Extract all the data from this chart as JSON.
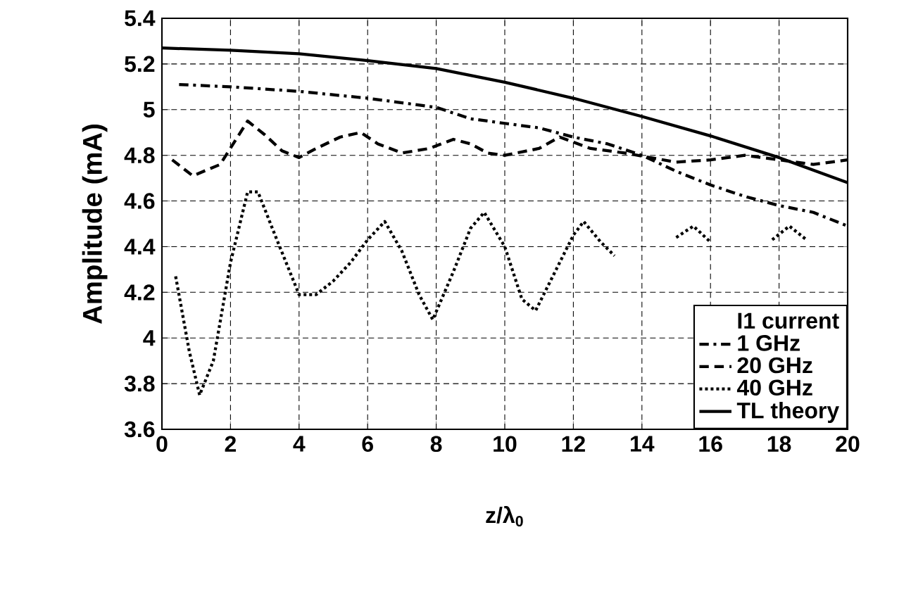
{
  "chart_data": {
    "type": "line",
    "xlabel": "z/λ$_{0}$",
    "ylabel": "Amplitude (mA)",
    "legend_title": "I1 current",
    "xlim": [
      0,
      20
    ],
    "xticks": [
      0,
      2,
      4,
      6,
      8,
      10,
      12,
      14,
      16,
      18,
      20
    ],
    "ylim": [
      3.6,
      5.4
    ],
    "yticks": [
      3.6,
      3.8,
      4,
      4.2,
      4.4,
      4.6,
      4.8,
      5,
      5.2,
      5.4
    ],
    "grid": true,
    "legend": "bottom right",
    "series": [
      {
        "name": "1 GHz",
        "color": "#000000",
        "line_style": "dashdot",
        "x": [
          0.5,
          2,
          4,
          6,
          8,
          9,
          10,
          11,
          12,
          13,
          14,
          15,
          16,
          17,
          18,
          19,
          20
        ],
        "values": [
          5.11,
          5.1,
          5.08,
          5.05,
          5.01,
          4.96,
          4.94,
          4.92,
          4.88,
          4.85,
          4.8,
          4.73,
          4.67,
          4.62,
          4.58,
          4.55,
          4.49
        ]
      },
      {
        "name": "20 GHz",
        "color": "#000000",
        "line_style": "dashed",
        "x": [
          0.3,
          0.9,
          1.7,
          2.5,
          3,
          3.5,
          4,
          4.5,
          5.2,
          5.8,
          6.3,
          7,
          7.8,
          8.5,
          9,
          9.5,
          10,
          11,
          11.6,
          12.5,
          13.5,
          15,
          16,
          17,
          18,
          19,
          20
        ],
        "values": [
          4.78,
          4.71,
          4.76,
          4.95,
          4.89,
          4.82,
          4.79,
          4.83,
          4.88,
          4.9,
          4.85,
          4.81,
          4.83,
          4.87,
          4.85,
          4.81,
          4.8,
          4.83,
          4.88,
          4.83,
          4.81,
          4.77,
          4.78,
          4.8,
          4.78,
          4.76,
          4.78
        ]
      },
      {
        "name": "40 GHz",
        "color": "#000000",
        "line_style": "dotted",
        "x": [
          0.4,
          0.8,
          1.1,
          1.5,
          2,
          2.5,
          2.8,
          3.3,
          4,
          4.5,
          5,
          5.5,
          6,
          6.5,
          7,
          7.5,
          7.9,
          8.5,
          9,
          9.4,
          10,
          10.5,
          10.9,
          11.5,
          12,
          12.3,
          12.8,
          13.2,
          14,
          15,
          15.5,
          16,
          17,
          17.8,
          18.3,
          18.8
        ],
        "values": [
          4.27,
          3.94,
          3.75,
          3.9,
          4.33,
          4.64,
          4.64,
          4.45,
          4.19,
          4.19,
          4.25,
          4.33,
          4.43,
          4.51,
          4.38,
          4.19,
          4.08,
          4.29,
          4.48,
          4.55,
          4.4,
          4.17,
          4.12,
          4.3,
          4.45,
          4.51,
          4.42,
          4.36,
          null,
          4.44,
          4.49,
          4.42,
          null,
          4.43,
          4.49,
          4.43
        ]
      },
      {
        "name": "TL theory",
        "color": "#000000",
        "line_style": "solid",
        "x": [
          0,
          2,
          4,
          6,
          8,
          10,
          12,
          14,
          16,
          18,
          20
        ],
        "values": [
          5.27,
          5.26,
          5.245,
          5.215,
          5.18,
          5.12,
          5.05,
          4.97,
          4.885,
          4.79,
          4.68
        ]
      }
    ]
  }
}
